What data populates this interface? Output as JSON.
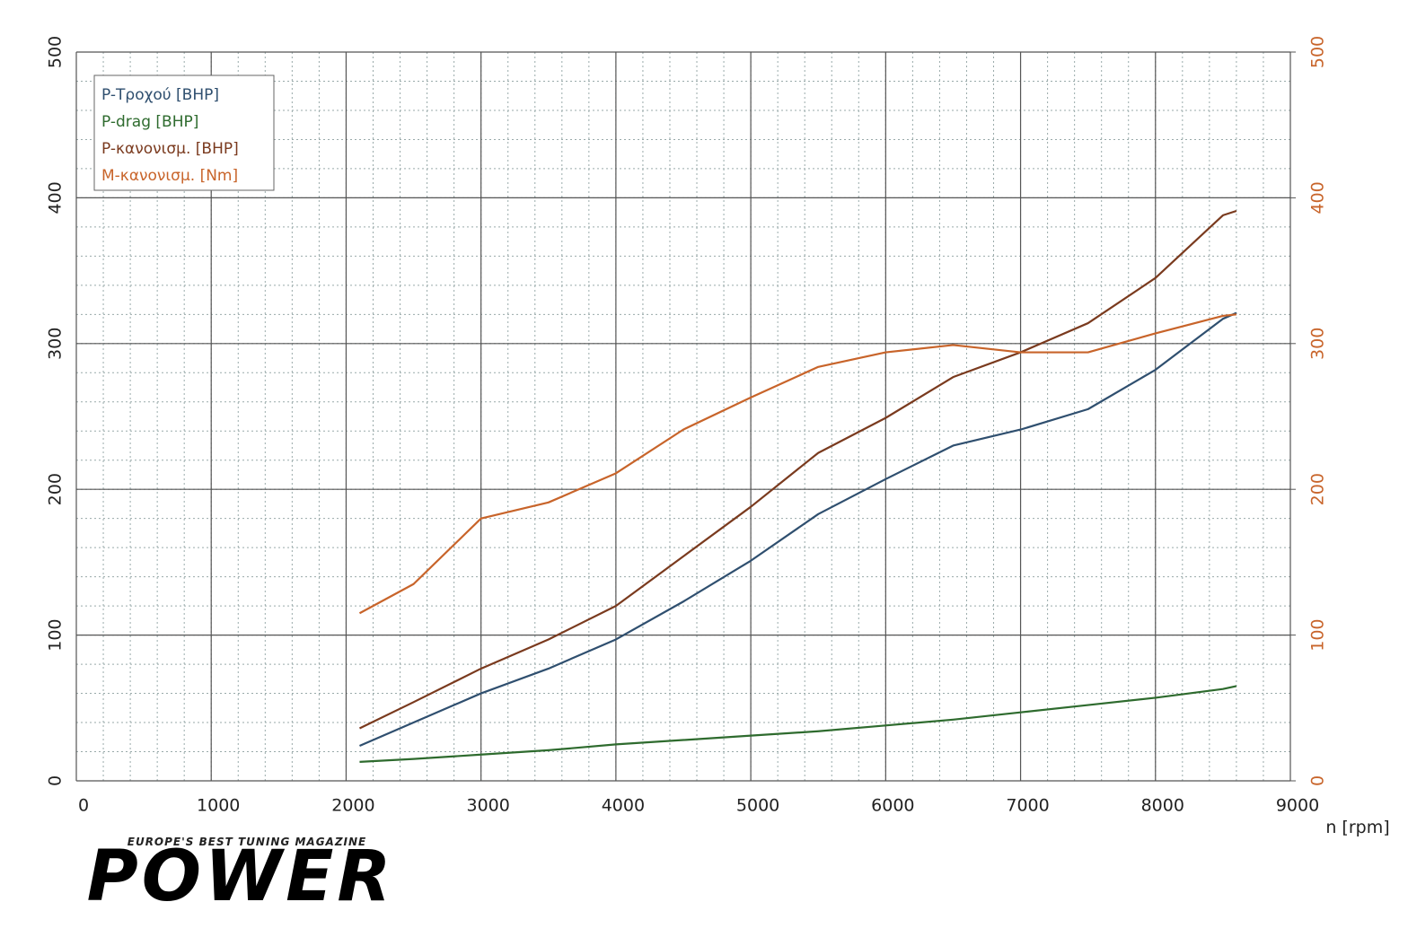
{
  "chart_data": {
    "type": "line",
    "x_label": "n [rpm]",
    "x": [
      2100,
      2500,
      3000,
      3500,
      4000,
      4500,
      5000,
      5500,
      6000,
      6500,
      7000,
      7500,
      8000,
      8500,
      8600
    ],
    "series": [
      {
        "name": "P-Τροχού [BHP]",
        "color": "#2f4f6f",
        "values": [
          24,
          40,
          60,
          77,
          97,
          123,
          151,
          183,
          207,
          230,
          241,
          255,
          282,
          317,
          321
        ]
      },
      {
        "name": "P-drag [BHP]",
        "color": "#2e6b2e",
        "values": [
          13,
          15,
          18,
          21,
          25,
          28,
          31,
          34,
          38,
          42,
          47,
          52,
          57,
          63,
          65
        ]
      },
      {
        "name": "P-κανονισμ. [BHP]",
        "color": "#7a3a1e",
        "values": [
          36,
          54,
          77,
          97,
          120,
          154,
          188,
          225,
          249,
          277,
          294,
          314,
          345,
          388,
          391
        ]
      },
      {
        "name": "M-κανονισμ. [Nm]",
        "color": "#c8642a",
        "axis": "y2",
        "values": [
          115,
          135,
          180,
          191,
          211,
          241,
          263,
          284,
          294,
          299,
          294,
          294,
          307,
          319,
          320
        ]
      }
    ],
    "xlim": [
      0,
      9000
    ],
    "xticks": [
      0,
      1000,
      2000,
      3000,
      4000,
      5000,
      6000,
      7000,
      8000,
      9000
    ],
    "ylim": [
      0,
      500
    ],
    "yticks": [
      0,
      100,
      200,
      300,
      400,
      500
    ],
    "y2lim": [
      0,
      500
    ],
    "y2ticks": [
      0,
      100,
      200,
      300,
      400,
      500
    ],
    "y2_color": "#c8642a",
    "grid": true,
    "legend": "upper left"
  },
  "branding": {
    "tagline": "EUROPE'S BEST TUNING MAGAZINE",
    "name": "POWER"
  }
}
